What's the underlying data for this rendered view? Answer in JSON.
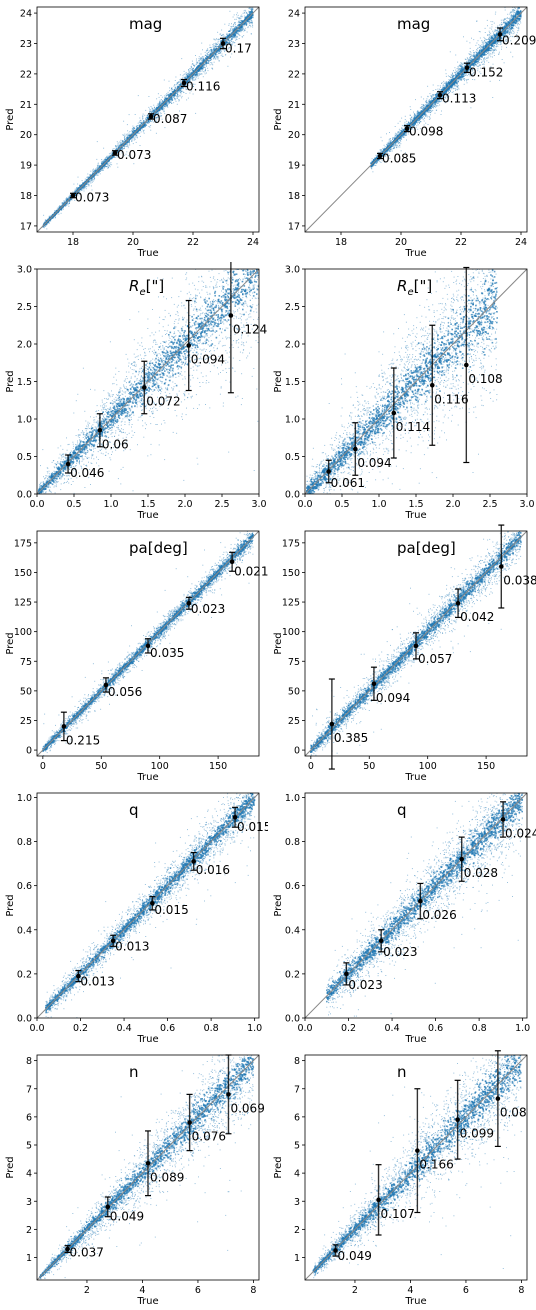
{
  "colors": {
    "points": "#1f77b4",
    "errorbar": "#000000",
    "diagonal": "#888888",
    "frame": "#000000"
  },
  "chart_data": [
    {
      "type": "scatter",
      "title": "mag",
      "title_math": false,
      "xlabel": "True",
      "ylabel": "Pred",
      "xlim": [
        16.8,
        24.2
      ],
      "ylim": [
        16.8,
        24.2
      ],
      "xticks": [
        18,
        20,
        22,
        24
      ],
      "yticks": [
        17,
        18,
        19,
        20,
        21,
        22,
        23,
        24
      ],
      "band": {
        "x": [
          17.0,
          24.0
        ],
        "spread_lo": 0.05,
        "spread_hi": 0.22
      },
      "bins": [
        {
          "x": 18.0,
          "y": 18.0,
          "err": 0.073,
          "label": "0.073"
        },
        {
          "x": 19.4,
          "y": 19.4,
          "err": 0.073,
          "label": "0.073"
        },
        {
          "x": 20.6,
          "y": 20.6,
          "err": 0.087,
          "label": "0.087"
        },
        {
          "x": 21.7,
          "y": 21.7,
          "err": 0.116,
          "label": "0.116"
        },
        {
          "x": 23.0,
          "y": 23.0,
          "err": 0.17,
          "label": "0.17"
        }
      ]
    },
    {
      "type": "scatter",
      "title": "mag",
      "title_math": false,
      "xlabel": "True",
      "ylabel": "Pred",
      "xlim": [
        16.8,
        24.2
      ],
      "ylim": [
        16.8,
        24.2
      ],
      "xticks": [
        18,
        20,
        22,
        24
      ],
      "yticks": [
        17,
        18,
        19,
        20,
        21,
        22,
        23,
        24
      ],
      "band": {
        "x": [
          19.0,
          24.0
        ],
        "spread_lo": 0.08,
        "spread_hi": 0.25
      },
      "bins": [
        {
          "x": 19.3,
          "y": 19.3,
          "err": 0.085,
          "label": "0.085"
        },
        {
          "x": 20.2,
          "y": 20.2,
          "err": 0.098,
          "label": "0.098"
        },
        {
          "x": 21.3,
          "y": 21.3,
          "err": 0.113,
          "label": "0.113"
        },
        {
          "x": 22.2,
          "y": 22.2,
          "err": 0.152,
          "label": "0.152"
        },
        {
          "x": 23.3,
          "y": 23.3,
          "err": 0.209,
          "label": "0.209"
        }
      ]
    },
    {
      "type": "scatter",
      "title": "R",
      "title_sub": "e",
      "title_suffix": "[\"]",
      "title_math": true,
      "xlabel": "True",
      "ylabel": "Pred",
      "xlim": [
        0,
        3
      ],
      "ylim": [
        0,
        3
      ],
      "xticks": [
        0.0,
        0.5,
        1.0,
        1.5,
        2.0,
        2.5,
        3.0
      ],
      "yticks": [
        0.0,
        0.5,
        1.0,
        1.5,
        2.0,
        2.5,
        3.0
      ],
      "tick_decimals": 1,
      "band": {
        "x": [
          0.02,
          3.0
        ],
        "spread_lo": 0.06,
        "spread_hi": 0.55
      },
      "bins": [
        {
          "x": 0.42,
          "y": 0.4,
          "err": 0.12,
          "label": "0.046"
        },
        {
          "x": 0.85,
          "y": 0.85,
          "err": 0.22,
          "label": "0.06"
        },
        {
          "x": 1.45,
          "y": 1.42,
          "err": 0.35,
          "label": "0.072"
        },
        {
          "x": 2.05,
          "y": 1.98,
          "err": 0.6,
          "label": "0.094"
        },
        {
          "x": 2.62,
          "y": 2.38,
          "err": 1.03,
          "label": "0.124"
        }
      ]
    },
    {
      "type": "scatter",
      "title": "R",
      "title_sub": "e",
      "title_suffix": "[\"]",
      "title_math": true,
      "xlabel": "True",
      "ylabel": "Pred",
      "xlim": [
        0,
        3
      ],
      "ylim": [
        0,
        3
      ],
      "xticks": [
        0.0,
        0.5,
        1.0,
        1.5,
        2.0,
        2.5,
        3.0
      ],
      "yticks": [
        0.0,
        0.5,
        1.0,
        1.5,
        2.0,
        2.5,
        3.0
      ],
      "tick_decimals": 1,
      "band": {
        "x": [
          0.02,
          2.6
        ],
        "spread_lo": 0.1,
        "spread_hi": 0.65
      },
      "bins": [
        {
          "x": 0.32,
          "y": 0.3,
          "err": 0.15,
          "label": "0.061"
        },
        {
          "x": 0.68,
          "y": 0.6,
          "err": 0.35,
          "label": "0.094"
        },
        {
          "x": 1.2,
          "y": 1.08,
          "err": 0.6,
          "label": "0.114"
        },
        {
          "x": 1.72,
          "y": 1.45,
          "err": 0.8,
          "label": "0.116"
        },
        {
          "x": 2.18,
          "y": 1.72,
          "err": 1.3,
          "label": "0.108"
        }
      ]
    },
    {
      "type": "scatter",
      "title": "pa[deg]",
      "title_math": false,
      "xlabel": "True",
      "ylabel": "Pred",
      "xlim": [
        -5,
        185
      ],
      "ylim": [
        -5,
        185
      ],
      "xticks": [
        0,
        50,
        100,
        150
      ],
      "yticks": [
        0,
        25,
        50,
        75,
        100,
        125,
        150,
        175
      ],
      "band": {
        "x": [
          0,
          180
        ],
        "spread_lo": 3,
        "spread_hi": 5
      },
      "bins": [
        {
          "x": 18,
          "y": 20,
          "err": 12,
          "label": "0.215"
        },
        {
          "x": 54,
          "y": 55,
          "err": 6,
          "label": "0.056"
        },
        {
          "x": 90,
          "y": 88,
          "err": 6,
          "label": "0.035"
        },
        {
          "x": 125,
          "y": 124,
          "err": 5,
          "label": "0.023"
        },
        {
          "x": 162,
          "y": 159,
          "err": 8,
          "label": "0.021"
        }
      ]
    },
    {
      "type": "scatter",
      "title": "pa[deg]",
      "title_math": false,
      "xlabel": "True",
      "ylabel": "Pred",
      "xlim": [
        -5,
        185
      ],
      "ylim": [
        -5,
        185
      ],
      "xticks": [
        0,
        50,
        100,
        150
      ],
      "yticks": [
        0,
        25,
        50,
        75,
        100,
        125,
        150,
        175
      ],
      "band": {
        "x": [
          0,
          180
        ],
        "spread_lo": 5,
        "spread_hi": 9
      },
      "bins": [
        {
          "x": 18,
          "y": 22,
          "err": 38,
          "label": "0.385"
        },
        {
          "x": 54,
          "y": 56,
          "err": 14,
          "label": "0.094"
        },
        {
          "x": 90,
          "y": 88,
          "err": 11,
          "label": "0.057"
        },
        {
          "x": 126,
          "y": 124,
          "err": 12,
          "label": "0.042"
        },
        {
          "x": 163,
          "y": 155,
          "err": 35,
          "label": "0.038"
        }
      ]
    },
    {
      "type": "scatter",
      "title": "q",
      "title_math": false,
      "xlabel": "True",
      "ylabel": "Pred",
      "xlim": [
        0,
        1.02
      ],
      "ylim": [
        0,
        1.02
      ],
      "xticks": [
        0.0,
        0.2,
        0.4,
        0.6,
        0.8,
        1.0
      ],
      "yticks": [
        0.0,
        0.2,
        0.4,
        0.6,
        0.8,
        1.0
      ],
      "tick_decimals": 1,
      "band": {
        "x": [
          0.04,
          1.0
        ],
        "spread_lo": 0.02,
        "spread_hi": 0.06
      },
      "bins": [
        {
          "x": 0.19,
          "y": 0.19,
          "err": 0.025,
          "label": "0.013"
        },
        {
          "x": 0.35,
          "y": 0.35,
          "err": 0.025,
          "label": "0.013"
        },
        {
          "x": 0.53,
          "y": 0.52,
          "err": 0.03,
          "label": "0.015"
        },
        {
          "x": 0.72,
          "y": 0.71,
          "err": 0.04,
          "label": "0.016"
        },
        {
          "x": 0.91,
          "y": 0.91,
          "err": 0.045,
          "label": "0.015"
        }
      ]
    },
    {
      "type": "scatter",
      "title": "q",
      "title_math": false,
      "xlabel": "True",
      "ylabel": "Pred",
      "xlim": [
        0,
        1.02
      ],
      "ylim": [
        0,
        1.02
      ],
      "xticks": [
        0.0,
        0.2,
        0.4,
        0.6,
        0.8,
        1.0
      ],
      "yticks": [
        0.0,
        0.2,
        0.4,
        0.6,
        0.8,
        1.0
      ],
      "tick_decimals": 1,
      "band": {
        "x": [
          0.1,
          1.0
        ],
        "spread_lo": 0.04,
        "spread_hi": 0.1
      },
      "bins": [
        {
          "x": 0.19,
          "y": 0.2,
          "err": 0.05,
          "label": "0.023"
        },
        {
          "x": 0.35,
          "y": 0.35,
          "err": 0.05,
          "label": "0.023"
        },
        {
          "x": 0.53,
          "y": 0.53,
          "err": 0.08,
          "label": "0.026"
        },
        {
          "x": 0.72,
          "y": 0.72,
          "err": 0.1,
          "label": "0.028"
        },
        {
          "x": 0.91,
          "y": 0.9,
          "err": 0.08,
          "label": "0.024"
        }
      ]
    },
    {
      "type": "scatter",
      "title": "n",
      "title_math": false,
      "xlabel": "True",
      "ylabel": "Pred",
      "xlim": [
        0.2,
        8.2
      ],
      "ylim": [
        0.2,
        8.2
      ],
      "xticks": [
        2,
        4,
        6,
        8
      ],
      "yticks": [
        1,
        2,
        3,
        4,
        5,
        6,
        7,
        8
      ],
      "band": {
        "x": [
          0.3,
          8.0
        ],
        "spread_lo": 0.05,
        "spread_hi": 0.9
      },
      "bins": [
        {
          "x": 1.3,
          "y": 1.3,
          "err": 0.12,
          "label": "0.037"
        },
        {
          "x": 2.75,
          "y": 2.8,
          "err": 0.35,
          "label": "0.049"
        },
        {
          "x": 4.2,
          "y": 4.35,
          "err": 1.15,
          "label": "0.089"
        },
        {
          "x": 5.7,
          "y": 5.8,
          "err": 1.0,
          "label": "0.076"
        },
        {
          "x": 7.1,
          "y": 6.8,
          "err": 1.4,
          "label": "0.069"
        }
      ]
    },
    {
      "type": "scatter",
      "title": "n",
      "title_math": false,
      "xlabel": "True",
      "ylabel": "Pred",
      "xlim": [
        0.2,
        8.2
      ],
      "ylim": [
        0.2,
        8.2
      ],
      "xticks": [
        2,
        4,
        6,
        8
      ],
      "yticks": [
        1,
        2,
        3,
        4,
        5,
        6,
        7,
        8
      ],
      "band": {
        "x": [
          0.5,
          8.0
        ],
        "spread_lo": 0.1,
        "spread_hi": 1.1
      },
      "bins": [
        {
          "x": 1.3,
          "y": 1.25,
          "err": 0.2,
          "label": "0.049"
        },
        {
          "x": 2.85,
          "y": 3.05,
          "err": 1.25,
          "label": "0.107"
        },
        {
          "x": 4.25,
          "y": 4.8,
          "err": 2.2,
          "label": "0.166"
        },
        {
          "x": 5.7,
          "y": 5.9,
          "err": 1.4,
          "label": "0.099"
        },
        {
          "x": 7.15,
          "y": 6.65,
          "err": 1.7,
          "label": "0.08"
        }
      ]
    }
  ]
}
